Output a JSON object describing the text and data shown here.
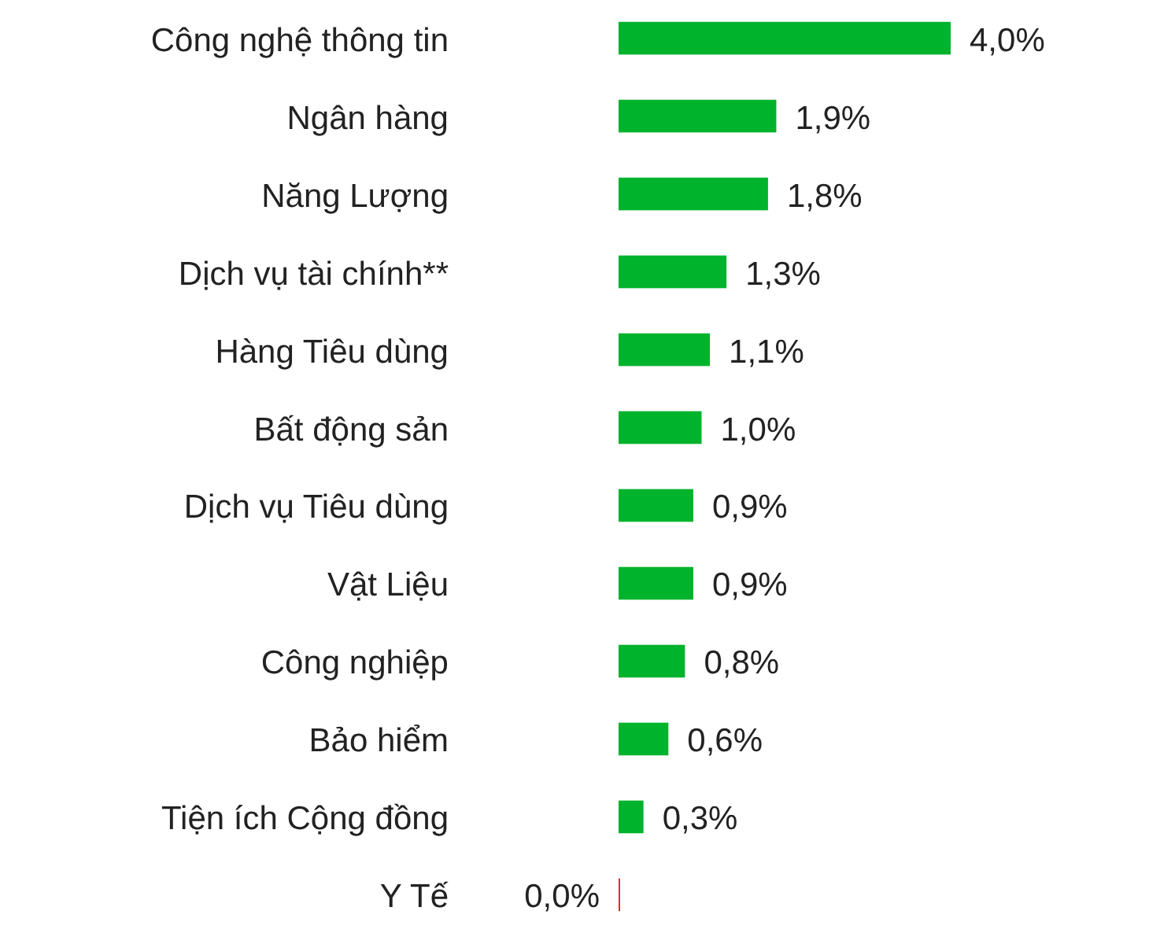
{
  "chart_data": {
    "type": "bar",
    "orientation": "horizontal",
    "categories": [
      "Công nghệ thông tin",
      "Ngân hàng",
      "Năng Lượng",
      "Dịch vụ tài chính**",
      "Hàng Tiêu dùng",
      "Bất động sản",
      "Dịch vụ Tiêu dùng",
      "Vật Liệu",
      "Công nghiệp",
      "Bảo hiểm",
      "Tiện ích Cộng đồng",
      "Y Tế"
    ],
    "values": [
      4.0,
      1.9,
      1.8,
      1.3,
      1.1,
      1.0,
      0.9,
      0.9,
      0.8,
      0.6,
      0.3,
      0.0
    ],
    "value_labels": [
      "4,0%",
      "1,9%",
      "1,8%",
      "1,3%",
      "1,1%",
      "1,0%",
      "0,9%",
      "0,9%",
      "0,8%",
      "0,6%",
      "0,3%",
      "0,0%"
    ],
    "colors": [
      "#00b32c",
      "#00b32c",
      "#00b32c",
      "#00b32c",
      "#00b32c",
      "#00b32c",
      "#00b32c",
      "#00b32c",
      "#00b32c",
      "#00b32c",
      "#00b32c",
      "#e8262b"
    ],
    "tick_labels": "y"
  }
}
